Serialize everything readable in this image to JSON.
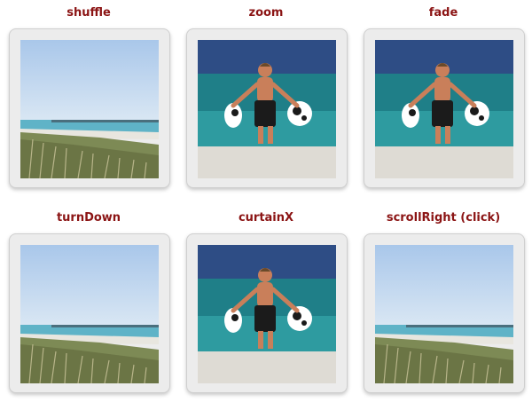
{
  "slideshows": [
    {
      "label": "shuffle",
      "image": "beach-grass"
    },
    {
      "label": "zoom",
      "image": "boy-with-float"
    },
    {
      "label": "fade",
      "image": "boy-with-float"
    },
    {
      "label": "turnDown",
      "image": "beach-grass"
    },
    {
      "label": "curtainX",
      "image": "boy-with-float"
    },
    {
      "label": "scrollRight (click)",
      "image": "beach-grass"
    }
  ]
}
